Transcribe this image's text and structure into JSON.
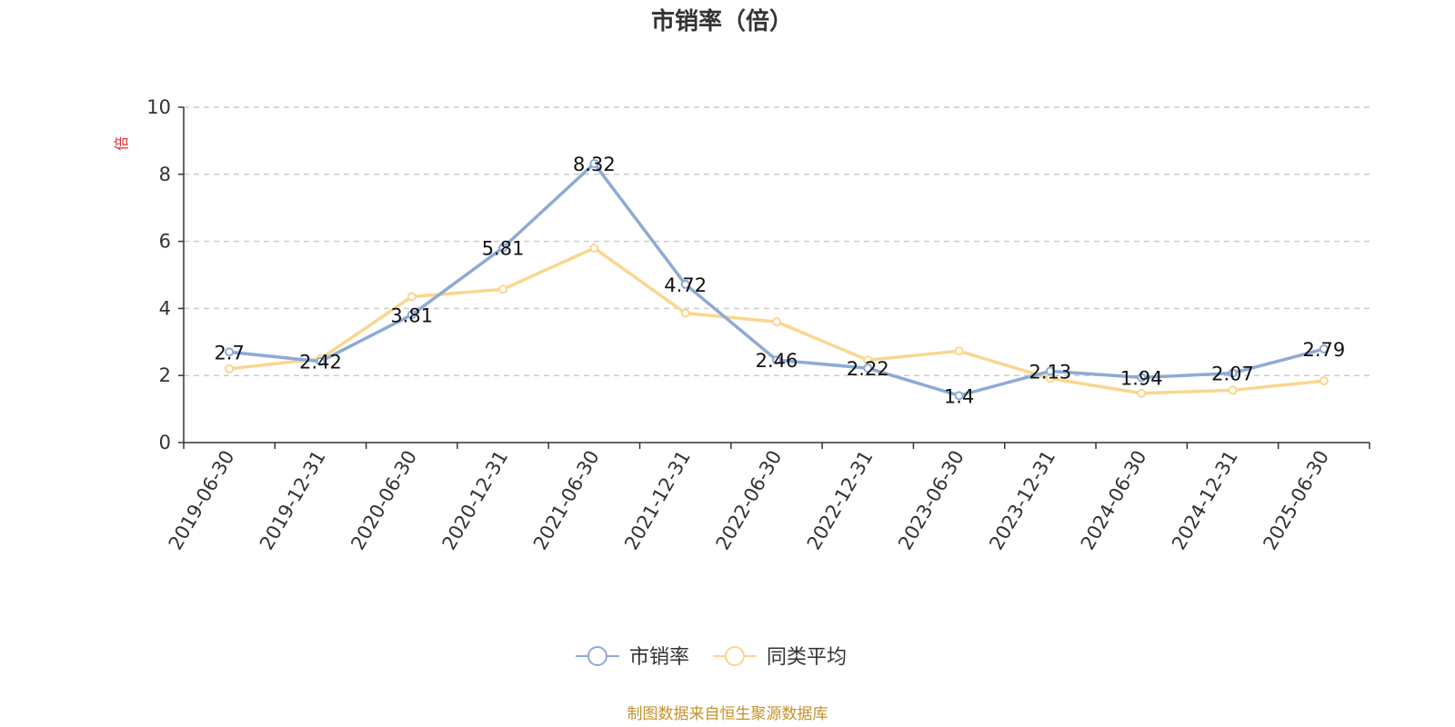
{
  "chart_data": {
    "type": "line",
    "title": "市销率（倍）",
    "ylabel": "倍",
    "xlabel": "",
    "ylim": [
      0,
      10
    ],
    "yticks": [
      0,
      2,
      4,
      6,
      8,
      10
    ],
    "grid": true,
    "legend_position": "bottom-center",
    "x": [
      "2019-06-30",
      "2019-12-31",
      "2020-06-30",
      "2020-12-31",
      "2021-06-30",
      "2021-12-31",
      "2022-06-30",
      "2022-12-31",
      "2023-06-30",
      "2023-12-31",
      "2024-06-30",
      "2024-12-31",
      "2025-06-30"
    ],
    "series": [
      {
        "name": "市销率",
        "color": "#8eaad6",
        "values": [
          2.7,
          2.42,
          3.81,
          5.81,
          8.32,
          4.72,
          2.46,
          2.22,
          1.4,
          2.13,
          1.94,
          2.07,
          2.79
        ],
        "data_labels": [
          "2.7",
          "2.42",
          "3.81",
          "5.81",
          "8.32",
          "4.72",
          "2.46",
          "2.22",
          "1.4",
          "2.13",
          "1.94",
          "2.07",
          "2.79"
        ]
      },
      {
        "name": "同类平均",
        "color": "#fad68f",
        "values": [
          2.2,
          2.5,
          4.35,
          4.57,
          5.8,
          3.86,
          3.6,
          2.46,
          2.73,
          1.91,
          1.47,
          1.56,
          1.84
        ]
      }
    ],
    "source": "制图数据来自恒生聚源数据库"
  }
}
